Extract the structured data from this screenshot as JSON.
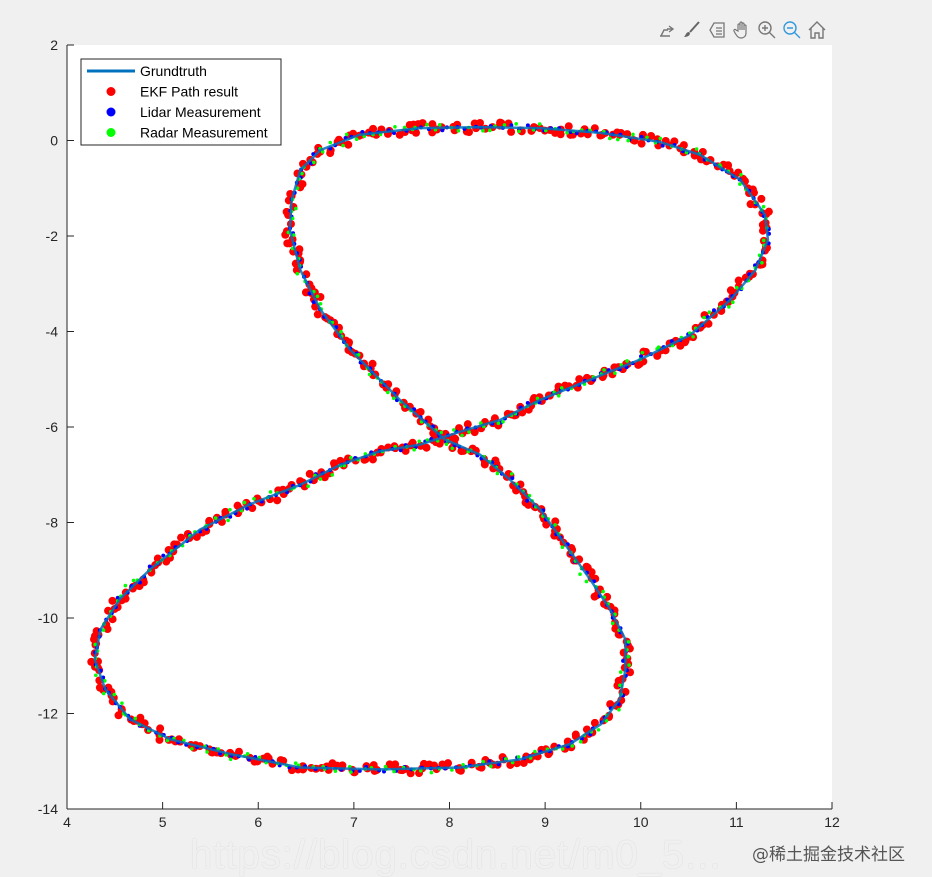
{
  "toolbar": {
    "icons": [
      "export-icon",
      "brush-icon",
      "data-tip-icon",
      "pan-icon",
      "zoom-in-icon",
      "zoom-out-icon",
      "home-icon"
    ],
    "active_color": "#3399dd"
  },
  "watermark": {
    "url_text": "https://blog.csdn.net/m0_5...",
    "credit_text": "@稀土掘金技术社区"
  },
  "chart_data": {
    "type": "scatter",
    "xlim": [
      4,
      12
    ],
    "ylim": [
      -14,
      2
    ],
    "xticks": [
      4,
      5,
      6,
      7,
      8,
      9,
      10,
      11,
      12
    ],
    "yticks": [
      2,
      0,
      -2,
      -4,
      -6,
      -8,
      -10,
      -12,
      -14
    ],
    "grid": false,
    "legend_position": "top-left",
    "series": [
      {
        "name": "Grundtruth",
        "kind": "line",
        "color": "#0072bd",
        "points": [
          [
            7.95,
            -6.26
          ],
          [
            7.48,
            -5.43
          ],
          [
            6.96,
            -4.38
          ],
          [
            6.65,
            -3.54
          ],
          [
            6.44,
            -2.71
          ],
          [
            6.33,
            -1.87
          ],
          [
            6.35,
            -1.24
          ],
          [
            6.44,
            -0.62
          ],
          [
            6.65,
            -0.2
          ],
          [
            7.06,
            0.12
          ],
          [
            7.69,
            0.26
          ],
          [
            8.32,
            0.28
          ],
          [
            8.95,
            0.26
          ],
          [
            9.58,
            0.16
          ],
          [
            10.2,
            -0.03
          ],
          [
            10.62,
            -0.3
          ],
          [
            11.04,
            -0.82
          ],
          [
            11.3,
            -1.56
          ],
          [
            11.33,
            -2.08
          ],
          [
            11.2,
            -2.71
          ],
          [
            10.94,
            -3.33
          ],
          [
            10.52,
            -4.07
          ],
          [
            9.99,
            -4.59
          ],
          [
            9.47,
            -5.01
          ],
          [
            8.95,
            -5.43
          ],
          [
            8.53,
            -5.85
          ],
          [
            8.11,
            -6.1
          ],
          [
            7.69,
            -6.37
          ],
          [
            7.27,
            -6.51
          ],
          [
            6.86,
            -6.79
          ],
          [
            6.44,
            -7.21
          ],
          [
            5.91,
            -7.62
          ],
          [
            5.39,
            -8.15
          ],
          [
            4.87,
            -8.98
          ],
          [
            4.55,
            -9.61
          ],
          [
            4.35,
            -10.24
          ],
          [
            4.29,
            -10.87
          ],
          [
            4.4,
            -11.49
          ],
          [
            4.66,
            -12.12
          ],
          [
            5.08,
            -12.54
          ],
          [
            5.71,
            -12.85
          ],
          [
            6.44,
            -13.13
          ],
          [
            7.27,
            -13.17
          ],
          [
            8.11,
            -13.13
          ],
          [
            8.74,
            -12.96
          ],
          [
            9.26,
            -12.64
          ],
          [
            9.58,
            -12.23
          ],
          [
            9.78,
            -11.7
          ],
          [
            9.84,
            -11.08
          ],
          [
            9.84,
            -10.45
          ],
          [
            9.68,
            -9.82
          ],
          [
            9.47,
            -9.19
          ],
          [
            9.21,
            -8.46
          ],
          [
            8.95,
            -7.73
          ],
          [
            8.63,
            -7.1
          ],
          [
            8.32,
            -6.58
          ],
          [
            7.95,
            -6.26
          ]
        ]
      },
      {
        "name": "EKF Path result",
        "kind": "marker",
        "color": "#ff0000"
      },
      {
        "name": "Lidar Measurement",
        "kind": "marker",
        "color": "#0000ff"
      },
      {
        "name": "Radar Measurement",
        "kind": "marker",
        "color": "#00ff00"
      }
    ]
  }
}
